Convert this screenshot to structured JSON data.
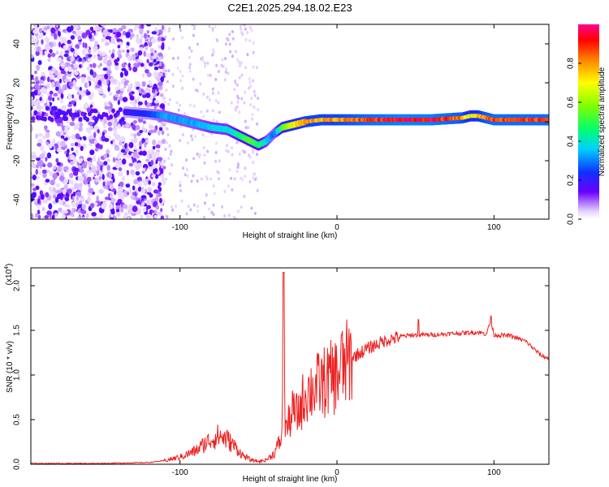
{
  "title": "C2E1.2025.294.18.02.E23",
  "colors": {
    "line": "#ee2020",
    "axis": "#000000",
    "background": "#ffffff"
  },
  "chart_data": [
    {
      "type": "heatmap",
      "title": "C2E1.2025.294.18.02.E23",
      "xlabel": "Height of straight line (km)",
      "ylabel": "Frequency (Hz)",
      "xlim": [
        -195,
        135
      ],
      "ylim": [
        -50,
        50
      ],
      "x_ticks": [
        -100,
        0,
        100
      ],
      "x_tick_labels": [
        "-100",
        "0",
        "100"
      ],
      "y_ticks": [
        -40,
        -20,
        0,
        20,
        40
      ],
      "y_tick_labels": [
        "-40",
        "-20",
        "0",
        "20",
        "40"
      ],
      "colorbar": {
        "label": "Normalized spectral amplitude",
        "range": [
          0,
          1
        ],
        "ticks": [
          0.0,
          0.2,
          0.4,
          0.6,
          0.8
        ],
        "tick_labels": [
          "0.0",
          "0.2",
          "0.4",
          "0.6",
          "0.8"
        ]
      },
      "ridge": {
        "x": [
          -135,
          -120,
          -110,
          -100,
          -90,
          -80,
          -70,
          -60,
          -55,
          -50,
          -45,
          -40,
          -35,
          -30,
          -25,
          -20,
          -10,
          0,
          10,
          20,
          40,
          60,
          80,
          85,
          90,
          95,
          100,
          110,
          120,
          135
        ],
        "freq": [
          5,
          4,
          3,
          1,
          -1,
          -3,
          -4,
          -8,
          -10,
          -12,
          -10,
          -6,
          -3,
          -2,
          -1,
          0,
          1,
          1,
          1,
          1,
          1,
          1,
          2,
          3,
          3,
          2,
          1,
          1,
          1,
          1
        ],
        "amplitude": [
          0.2,
          0.25,
          0.35,
          0.35,
          0.35,
          0.4,
          0.4,
          0.5,
          0.6,
          0.5,
          0.4,
          0.3,
          0.55,
          0.7,
          0.8,
          0.85,
          0.85,
          0.85,
          0.9,
          0.95,
          1.0,
          1.0,
          0.9,
          0.7,
          0.8,
          0.9,
          0.95,
          0.95,
          0.95,
          0.95
        ]
      }
    },
    {
      "type": "line",
      "xlabel": "Height of straight line (km)",
      "ylabel": "SNR (10 * v/v)",
      "y_multiplier": "(x10",
      "y_multiplier_exp": "4",
      "xlim": [
        -195,
        135
      ],
      "ylim": [
        0,
        2.2
      ],
      "x_ticks": [
        -100,
        0,
        100
      ],
      "x_tick_labels": [
        "-100",
        "0",
        "100"
      ],
      "y_ticks": [
        0,
        0.5,
        1.0,
        1.5,
        2.0
      ],
      "y_tick_labels": [
        "0.0",
        "0.5",
        "1.0",
        "1.5",
        "2.0"
      ],
      "series": [
        {
          "name": "SNR",
          "x": [
            -195,
            -150,
            -120,
            -110,
            -100,
            -90,
            -85,
            -80,
            -75,
            -70,
            -65,
            -60,
            -55,
            -50,
            -45,
            -40,
            -38,
            -35,
            -34,
            -33,
            -32,
            -30,
            -28,
            -25,
            -22,
            -20,
            -15,
            -10,
            -5,
            0,
            5,
            10,
            20,
            30,
            40,
            50,
            60,
            70,
            80,
            90,
            95,
            98,
            100,
            110,
            120,
            125,
            130,
            135
          ],
          "y": [
            0.01,
            0.01,
            0.02,
            0.04,
            0.08,
            0.15,
            0.22,
            0.28,
            0.32,
            0.28,
            0.2,
            0.1,
            0.05,
            0.03,
            0.05,
            0.12,
            0.2,
            0.3,
            2.1,
            0.5,
            0.4,
            0.5,
            0.6,
            0.55,
            0.7,
            0.8,
            0.85,
            0.9,
            0.95,
            1.0,
            1.1,
            1.2,
            1.3,
            1.38,
            1.43,
            1.45,
            1.45,
            1.46,
            1.47,
            1.48,
            1.46,
            1.6,
            1.45,
            1.44,
            1.38,
            1.3,
            1.22,
            1.18
          ]
        }
      ]
    }
  ]
}
